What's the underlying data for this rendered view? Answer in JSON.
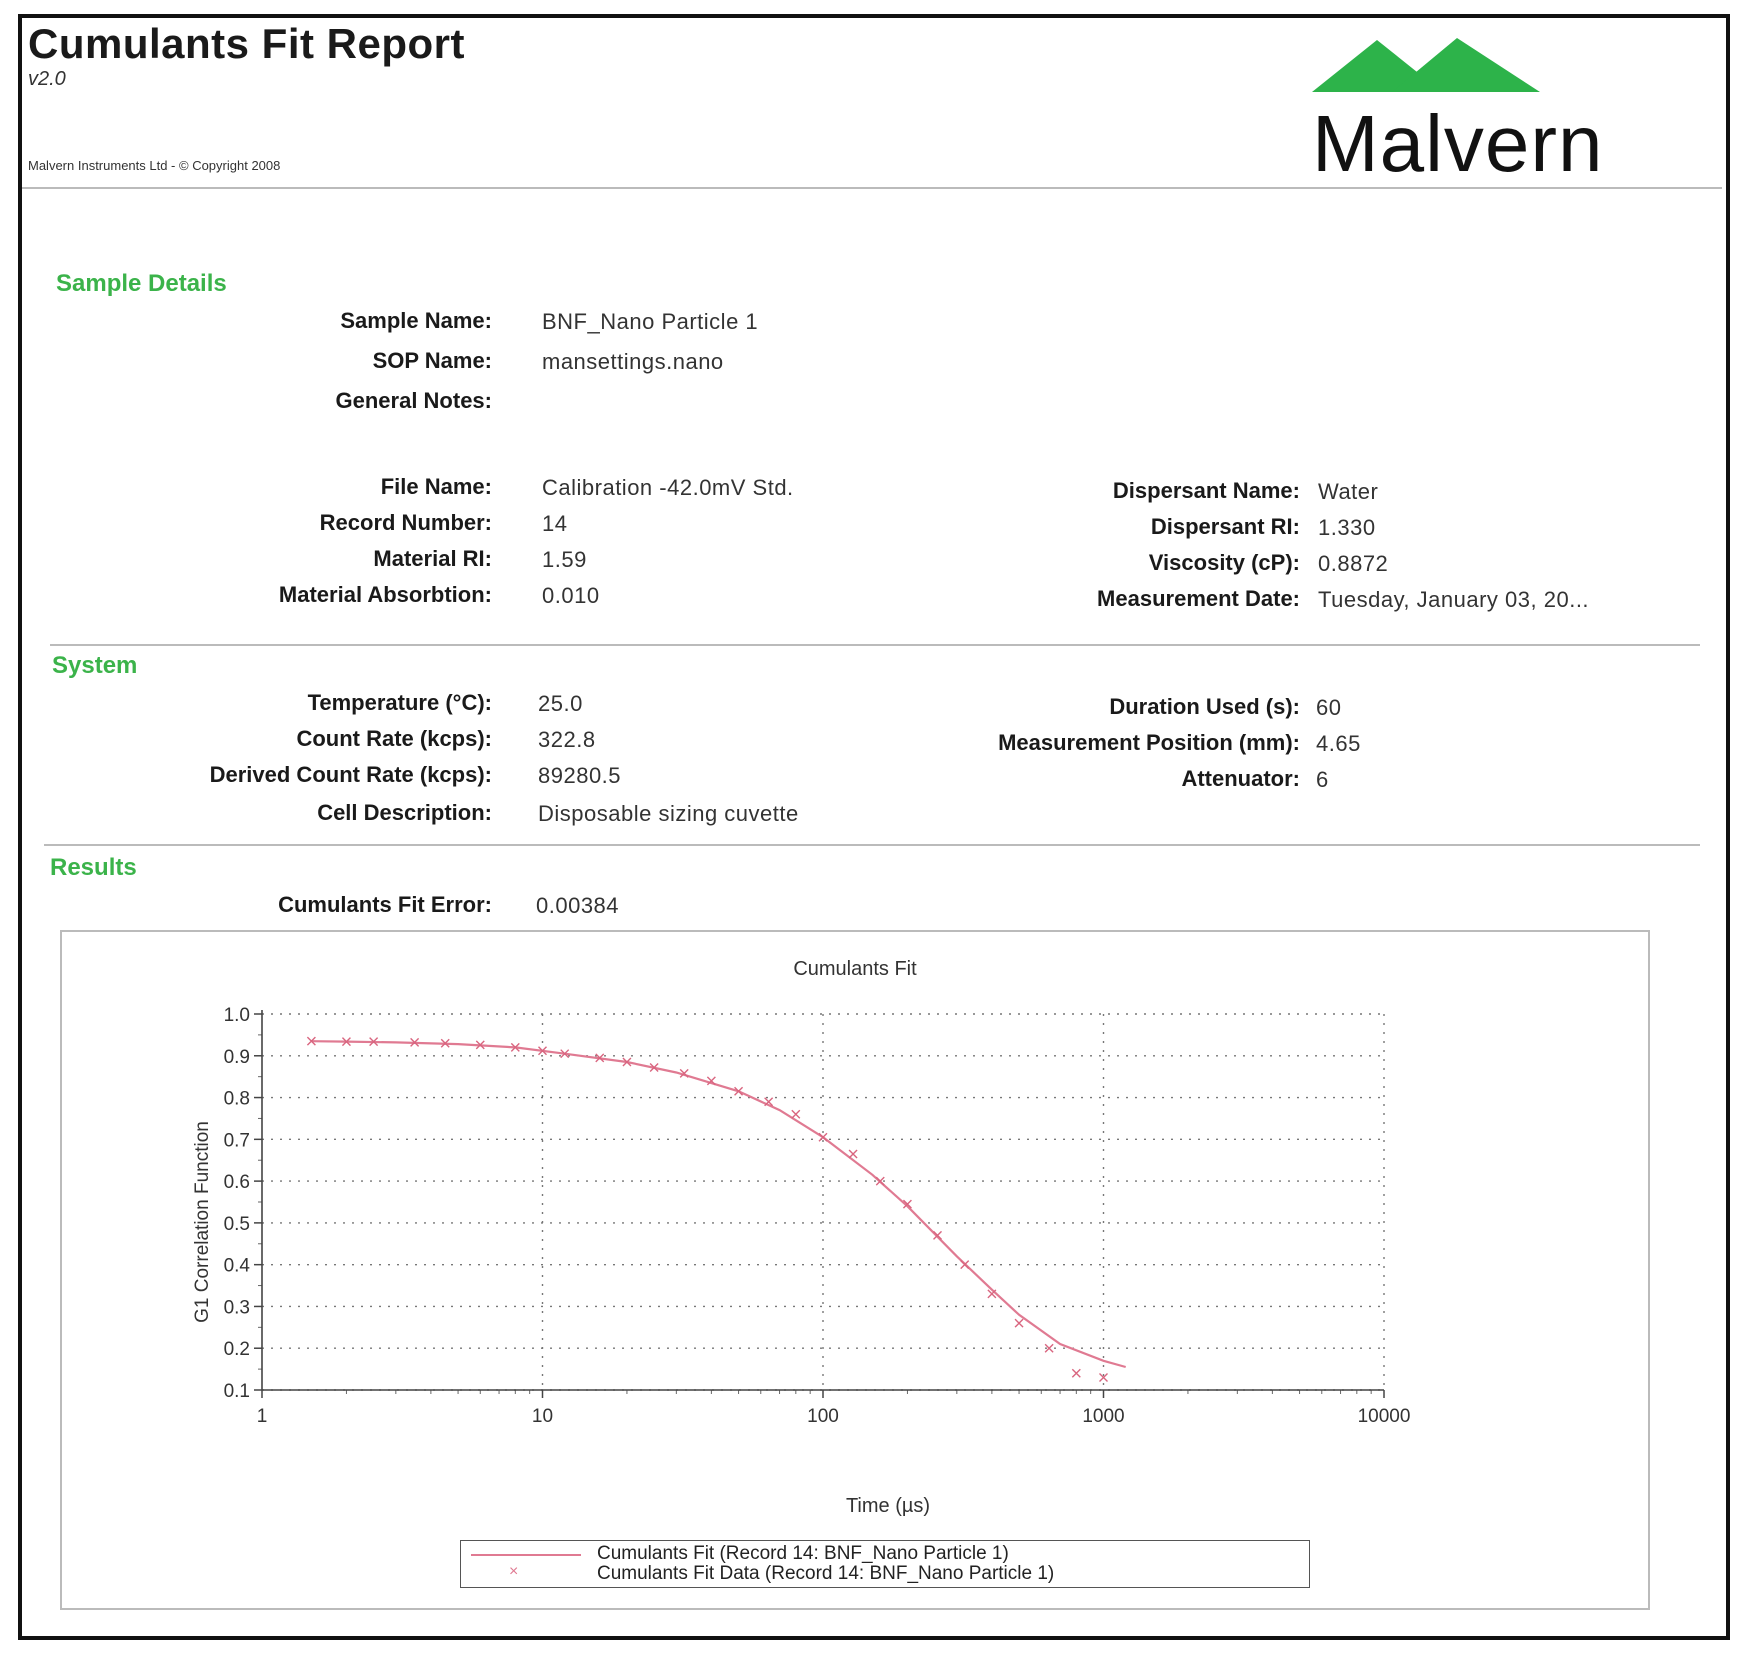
{
  "colors": {
    "accent_green": "#3bb34a",
    "logo_green": "#2db34a",
    "curve": "#e07a92"
  },
  "header": {
    "title": "Cumulants Fit Report",
    "version": "v2.0",
    "copyright": "Malvern Instruments Ltd  - © Copyright 2008",
    "logo_text": "Malvern",
    "logo_icon": "malvern-mountains-logo"
  },
  "sample_details": {
    "heading": "Sample Details",
    "sample_name_label": "Sample Name:",
    "sample_name": "BNF_Nano Particle 1",
    "sop_name_label": "SOP Name:",
    "sop_name": "mansettings.nano",
    "general_notes_label": "General Notes:",
    "general_notes": "",
    "file_name_label": "File Name:",
    "file_name": "Calibration -42.0mV Std.",
    "record_number_label": "Record Number:",
    "record_number": "14",
    "material_ri_label": "Material RI:",
    "material_ri": "1.59",
    "material_absorbtion_label": "Material Absorbtion:",
    "material_absorbtion": "0.010",
    "dispersant_name_label": "Dispersant Name:",
    "dispersant_name": "Water",
    "dispersant_ri_label": "Dispersant RI:",
    "dispersant_ri": "1.330",
    "viscosity_label": "Viscosity (cP):",
    "viscosity": "0.8872",
    "measurement_date_label": "Measurement Date:",
    "measurement_date": "Tuesday, January 03, 20..."
  },
  "system": {
    "heading": "System",
    "temperature_label": "Temperature (°C):",
    "temperature": "25.0",
    "count_rate_label": "Count Rate (kcps):",
    "count_rate": "322.8",
    "derived_count_rate_label": "Derived Count Rate (kcps):",
    "derived_count_rate": "89280.5",
    "cell_description_label": "Cell Description:",
    "cell_description": "Disposable sizing cuvette",
    "duration_used_label": "Duration Used (s):",
    "duration_used": "60",
    "measurement_position_label": "Measurement Position (mm):",
    "measurement_position": "4.65",
    "attenuator_label": "Attenuator:",
    "attenuator": "6"
  },
  "results": {
    "heading": "Results",
    "fit_error_label": "Cumulants Fit Error:",
    "fit_error": "0.00384"
  },
  "chart_data": {
    "type": "scatter",
    "title": "Cumulants Fit",
    "xlabel": "Time (µs)",
    "ylabel": "G1 Correlation Function",
    "x_scale": "log",
    "xlim": [
      1,
      10000
    ],
    "ylim": [
      0.1,
      1.0
    ],
    "x_ticks": [
      "1",
      "10",
      "100",
      "1000",
      "10000"
    ],
    "y_ticks": [
      "0.1",
      "0.2",
      "0.3",
      "0.4",
      "0.5",
      "0.6",
      "0.7",
      "0.8",
      "0.9",
      "1.0"
    ],
    "grid": true,
    "legend_position": "bottom",
    "series": [
      {
        "name": "Cumulants Fit (Record 14: BNF_Nano Particle 1)",
        "kind": "line",
        "x": [
          1.5,
          2,
          3,
          5,
          8,
          12,
          20,
          30,
          50,
          70,
          100,
          150,
          200,
          300,
          400,
          500,
          700,
          1000,
          1200
        ],
        "y": [
          0.935,
          0.934,
          0.932,
          0.928,
          0.92,
          0.905,
          0.885,
          0.86,
          0.815,
          0.77,
          0.705,
          0.615,
          0.54,
          0.42,
          0.34,
          0.28,
          0.21,
          0.17,
          0.155
        ]
      },
      {
        "name": "Cumulants Fit Data (Record 14: BNF_Nano Particle 1)",
        "kind": "points",
        "x": [
          1.5,
          2,
          2.5,
          3.5,
          4.5,
          6,
          8,
          10,
          12,
          16,
          20,
          25,
          32,
          40,
          50,
          64,
          80,
          100,
          128,
          160,
          200,
          256,
          320,
          400,
          500,
          640,
          800,
          1000
        ],
        "y": [
          0.935,
          0.934,
          0.934,
          0.932,
          0.93,
          0.926,
          0.92,
          0.912,
          0.905,
          0.895,
          0.885,
          0.872,
          0.858,
          0.84,
          0.815,
          0.79,
          0.76,
          0.705,
          0.665,
          0.6,
          0.545,
          0.47,
          0.4,
          0.33,
          0.26,
          0.2,
          0.14,
          0.13
        ]
      }
    ]
  }
}
